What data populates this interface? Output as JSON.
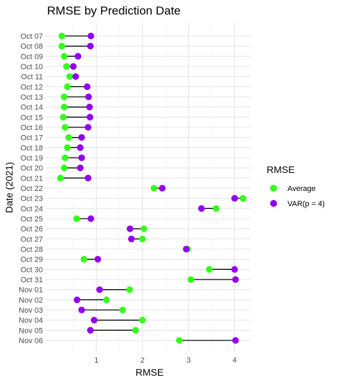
{
  "chart_data": {
    "type": "dumbbell",
    "title": "RMSE by Prediction Date",
    "xlabel": "RMSE",
    "ylabel": "Date (2021)",
    "xlim": [
      -0.1,
      4.35
    ],
    "x_ticks": [
      1,
      2,
      3,
      4
    ],
    "x_tick_labels": [
      "1",
      "2",
      "3",
      "4"
    ],
    "grid": true,
    "legend": {
      "title": "RMSE",
      "position": "right"
    },
    "categories": [
      "Oct 07",
      "Oct 08",
      "Oct 09",
      "Oct 10",
      "Oct 11",
      "Oct 12",
      "Oct 13",
      "Oct 14",
      "Oct 15",
      "Oct 16",
      "Oct 17",
      "Oct 18",
      "Oct 19",
      "Oct 20",
      "Oct 21",
      "Oct 22",
      "Oct 23",
      "Oct 24",
      "Oct 25",
      "Oct 26",
      "Oct 27",
      "Oct 28",
      "Oct 29",
      "Oct 30",
      "Oct 31",
      "Nov 01",
      "Nov 02",
      "Nov 03",
      "Nov 04",
      "Nov 05",
      "Nov 06"
    ],
    "series": [
      {
        "name": "Average",
        "color": "#33ff1a",
        "values": [
          0.25,
          0.25,
          0.3,
          0.35,
          0.42,
          0.37,
          0.3,
          0.3,
          0.28,
          0.32,
          0.4,
          0.37,
          0.32,
          0.3,
          0.22,
          2.25,
          4.18,
          3.6,
          0.57,
          2.03,
          2.0,
          2.98,
          0.73,
          3.45,
          3.05,
          1.72,
          1.22,
          1.57,
          2.0,
          1.85,
          2.8
        ]
      },
      {
        "name": "VAR(p = 4)",
        "color": "#9400f0",
        "values": [
          0.88,
          0.87,
          0.6,
          0.5,
          0.55,
          0.8,
          0.83,
          0.85,
          0.86,
          0.82,
          0.68,
          0.65,
          0.68,
          0.65,
          0.82,
          2.43,
          4.0,
          3.28,
          0.88,
          1.73,
          1.76,
          2.95,
          1.03,
          4.0,
          4.02,
          1.07,
          0.58,
          0.68,
          0.95,
          0.87,
          4.02
        ]
      }
    ]
  }
}
